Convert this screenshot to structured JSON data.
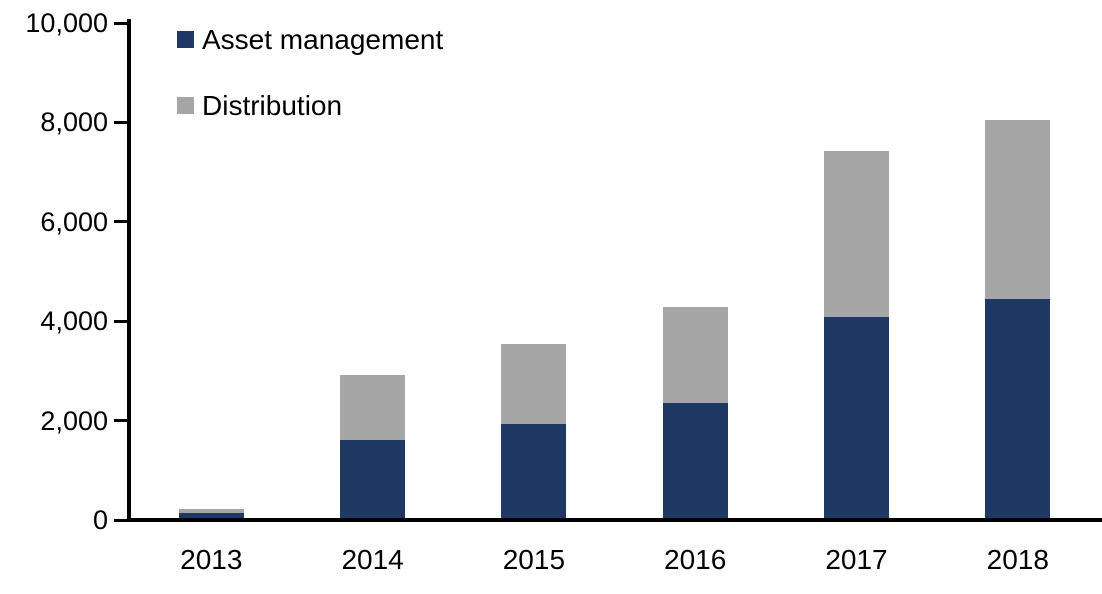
{
  "chart_data": {
    "type": "bar",
    "stacked": true,
    "title": "",
    "xlabel": "",
    "ylabel": "",
    "categories": [
      "2013",
      "2014",
      "2015",
      "2016",
      "2017",
      "2018"
    ],
    "series": [
      {
        "name": "Asset management",
        "color": "#1F3864",
        "values": [
          100,
          1570,
          1890,
          2310,
          4050,
          4410
        ]
      },
      {
        "name": "Distribution",
        "color": "#A6A6A6",
        "values": [
          80,
          1300,
          1610,
          1940,
          3340,
          3590
        ]
      }
    ],
    "ylim": [
      0,
      10000
    ],
    "ytick_interval": 2000,
    "ytick_labels": [
      "0",
      "2,000",
      "4,000",
      "6,000",
      "8,000",
      "10,000"
    ],
    "grid": false,
    "legend_position": "top-left",
    "axis_color": "#000000",
    "text_color": "#000000",
    "background": "#FFFFFF"
  }
}
